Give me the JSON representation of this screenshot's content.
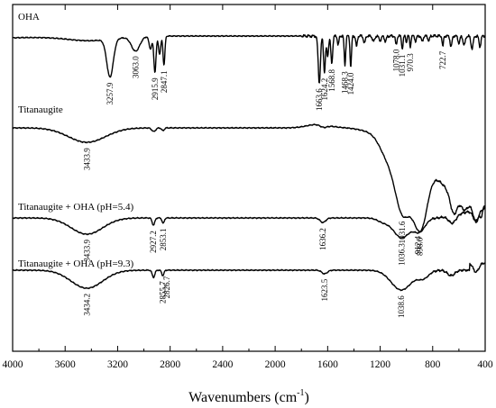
{
  "chart_data": {
    "type": "line",
    "title": "",
    "xlabel": "Wavenumbers (cm-1)",
    "xlabel_main": "Wavenumbers (cm",
    "xlabel_sup": "-1",
    "xlabel_close": ")",
    "ylabel": "",
    "xlim": [
      4000,
      400
    ],
    "x_reversed": true,
    "x_ticks": [
      4000,
      3600,
      3200,
      2800,
      2400,
      2000,
      1600,
      1200,
      800,
      400
    ],
    "x_tick_labels": [
      "4000",
      "3600",
      "3200",
      "2800",
      "2400",
      "2000",
      "1600",
      "1200",
      "800",
      "400"
    ],
    "grid": false,
    "legend": "none",
    "series": [
      {
        "name": "OHA",
        "peaks": [
          {
            "label": "3257.9",
            "x": 3257.9
          },
          {
            "label": "3063.0",
            "x": 3063.0
          },
          {
            "label": "2915.9",
            "x": 2915.9
          },
          {
            "label": "2847.1",
            "x": 2847.1
          },
          {
            "label": "1663.6",
            "x": 1663.6
          },
          {
            "label": "1624.2",
            "x": 1624.2
          },
          {
            "label": "1568.8",
            "x": 1568.8
          },
          {
            "label": "1468.3",
            "x": 1468.3
          },
          {
            "label": "1424.0",
            "x": 1424.0
          },
          {
            "label": "1078.0",
            "x": 1078.0
          },
          {
            "label": "1031.1",
            "x": 1031.1
          },
          {
            "label": "970.3",
            "x": 970.3
          },
          {
            "label": "722.7",
            "x": 722.7
          }
        ]
      },
      {
        "name": "Titanaugite",
        "peaks": [
          {
            "label": "3433.9",
            "x": 3433.9
          },
          {
            "label": "1031.6",
            "x": 1031.6
          },
          {
            "label": "912.4",
            "x": 912.4
          }
        ]
      },
      {
        "name": "Titanaugite + OHA (pH=5.4)",
        "peaks": [
          {
            "label": "3433.9",
            "x": 3433.9
          },
          {
            "label": "2927.2",
            "x": 2927.2
          },
          {
            "label": "2853.1",
            "x": 2853.1
          },
          {
            "label": "1636.2",
            "x": 1636.2
          },
          {
            "label": "1036.3",
            "x": 1036.3
          },
          {
            "label": "898.6",
            "x": 898.6
          }
        ]
      },
      {
        "name": "Titanaugite + OHA (pH=9.3)",
        "peaks": [
          {
            "label": "3434.2",
            "x": 3434.2
          },
          {
            "label": "2826.7",
            "x": 2826.7
          },
          {
            "label": "2855.7",
            "x": 2855.7
          },
          {
            "label": "1623.5",
            "x": 1623.5
          },
          {
            "label": "1038.6",
            "x": 1038.6
          }
        ]
      }
    ]
  }
}
